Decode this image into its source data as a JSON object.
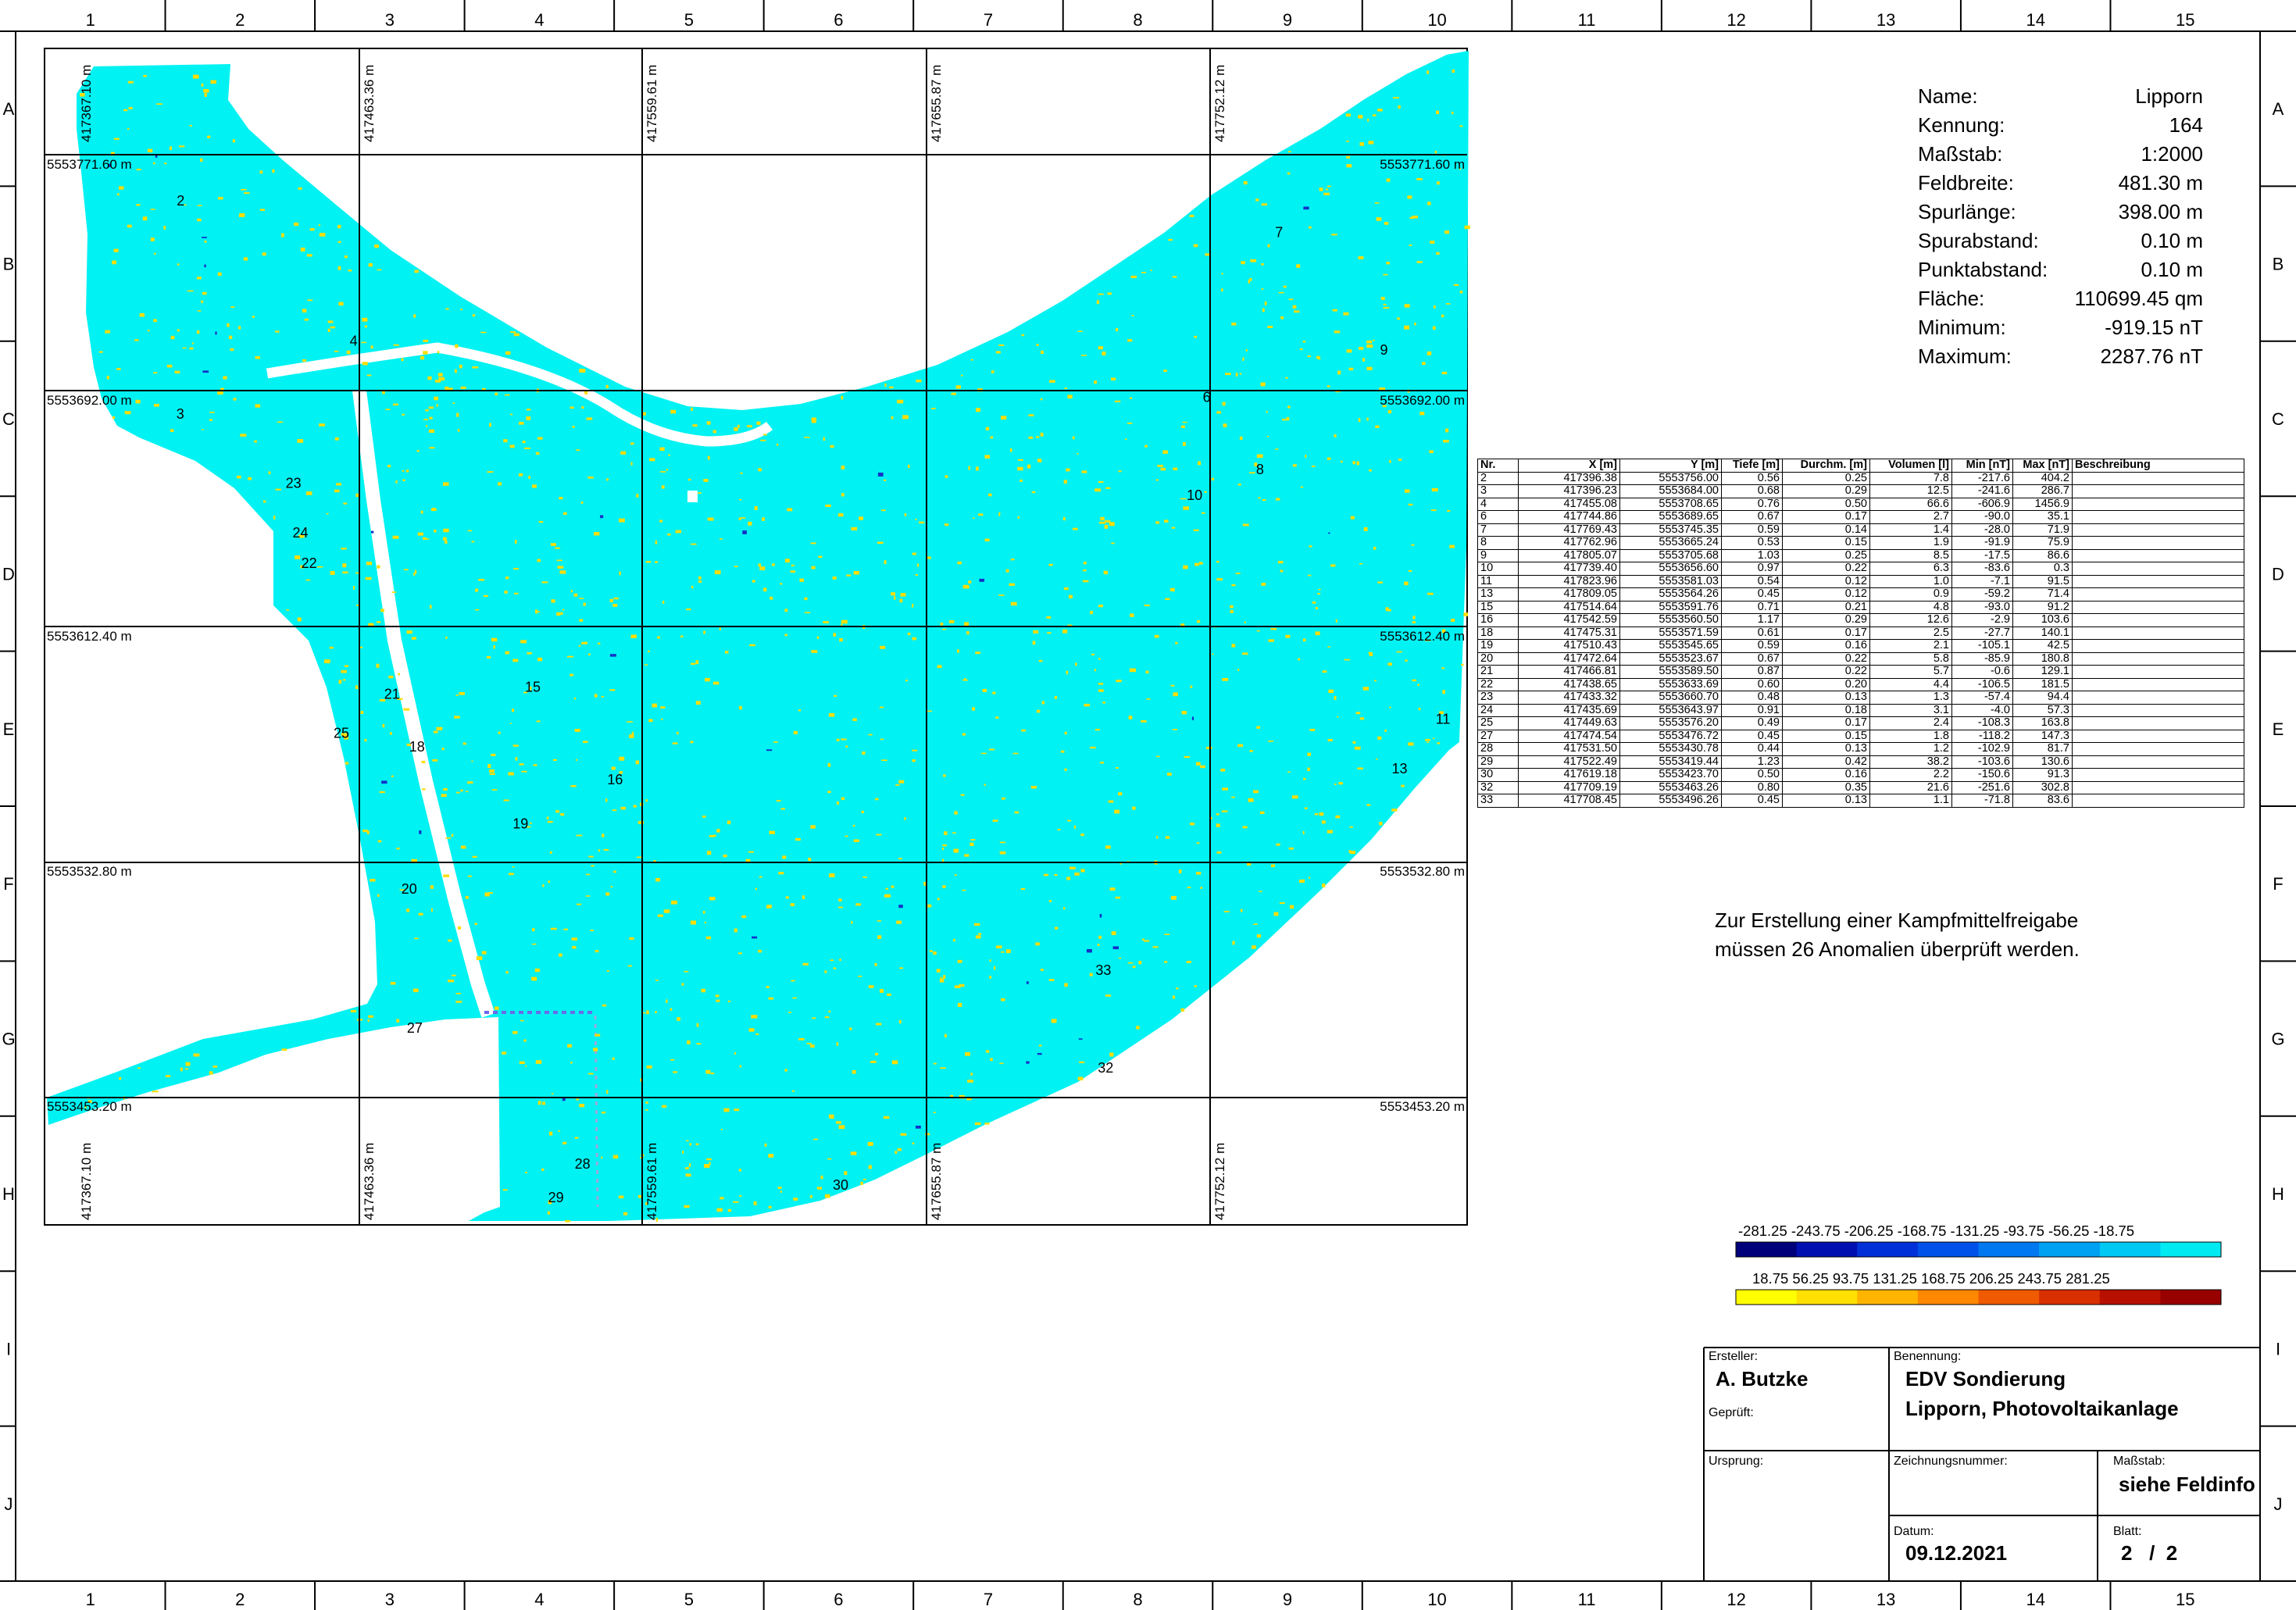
{
  "frame": {
    "columns": [
      "1",
      "2",
      "3",
      "4",
      "5",
      "6",
      "7",
      "8",
      "9",
      "10",
      "11",
      "12",
      "13",
      "14",
      "15"
    ],
    "rows": [
      "A",
      "B",
      "C",
      "D",
      "E",
      "F",
      "G",
      "H",
      "I",
      "J"
    ]
  },
  "map": {
    "colors": {
      "field": "#00f2f2",
      "positive": "#ffdd00",
      "negative": "#1430c8",
      "grid": "#000000"
    },
    "easting_labels": [
      "417367.10 m",
      "417463.36 m",
      "417559.61 m",
      "417655.87 m",
      "417752.12 m"
    ],
    "northing_labels": [
      "5553771.60 m",
      "5553692.00 m",
      "5553612.40 m",
      "5553532.80 m",
      "5553453.20 m"
    ],
    "anomaly_labels": [
      {
        "nr": "2",
        "x": 417396.38,
        "y": 5553756.0
      },
      {
        "nr": "3",
        "x": 417396.23,
        "y": 5553684.0
      },
      {
        "nr": "4",
        "x": 417455.08,
        "y": 5553708.65
      },
      {
        "nr": "6",
        "x": 417744.86,
        "y": 5553689.65
      },
      {
        "nr": "7",
        "x": 417769.43,
        "y": 5553745.35
      },
      {
        "nr": "8",
        "x": 417762.96,
        "y": 5553665.24
      },
      {
        "nr": "9",
        "x": 417805.07,
        "y": 5553705.68
      },
      {
        "nr": "10",
        "x": 417739.4,
        "y": 5553656.6
      },
      {
        "nr": "11",
        "x": 417823.96,
        "y": 5553581.03
      },
      {
        "nr": "13",
        "x": 417809.05,
        "y": 5553564.26
      },
      {
        "nr": "15",
        "x": 417514.64,
        "y": 5553591.76
      },
      {
        "nr": "16",
        "x": 417542.59,
        "y": 5553560.5
      },
      {
        "nr": "18",
        "x": 417475.31,
        "y": 5553571.59
      },
      {
        "nr": "19",
        "x": 417510.43,
        "y": 5553545.65
      },
      {
        "nr": "20",
        "x": 417472.64,
        "y": 5553523.67
      },
      {
        "nr": "21",
        "x": 417466.81,
        "y": 5553589.5
      },
      {
        "nr": "22",
        "x": 417438.65,
        "y": 5553633.69
      },
      {
        "nr": "23",
        "x": 417433.32,
        "y": 5553660.7
      },
      {
        "nr": "24",
        "x": 417435.69,
        "y": 5553643.97
      },
      {
        "nr": "25",
        "x": 417449.63,
        "y": 5553576.2
      },
      {
        "nr": "27",
        "x": 417474.54,
        "y": 5553476.72
      },
      {
        "nr": "28",
        "x": 417531.5,
        "y": 5553430.78
      },
      {
        "nr": "29",
        "x": 417522.49,
        "y": 5553419.44
      },
      {
        "nr": "30",
        "x": 417619.18,
        "y": 5553423.7
      },
      {
        "nr": "32",
        "x": 417709.19,
        "y": 5553463.26
      },
      {
        "nr": "33",
        "x": 417708.45,
        "y": 5553496.26
      }
    ]
  },
  "fieldinfo": [
    {
      "label": "Name:",
      "value": "Lipporn"
    },
    {
      "label": "Kennung:",
      "value": "164"
    },
    {
      "label": "Maßstab:",
      "value": "1:2000"
    },
    {
      "label": "Feldbreite:",
      "value": "481.30 m"
    },
    {
      "label": "Spurlänge:",
      "value": "398.00 m"
    },
    {
      "label": "Spurabstand:",
      "value": "0.10 m"
    },
    {
      "label": "Punktabstand:",
      "value": "0.10 m"
    },
    {
      "label": "Fläche:",
      "value": "110699.45 qm"
    },
    {
      "label": "Minimum:",
      "value": "-919.15 nT"
    },
    {
      "label": "Maximum:",
      "value": "2287.76 nT"
    }
  ],
  "table": {
    "headers": [
      "Nr.",
      "X [m]",
      "Y [m]",
      "Tiefe [m]",
      "Durchm. [m]",
      "Volumen [l]",
      "Min [nT]",
      "Max [nT]",
      "Beschreibung"
    ],
    "rows": [
      [
        "2",
        "417396.38",
        "5553756.00",
        "0.56",
        "0.25",
        "7.8",
        "-217.6",
        "404.2",
        ""
      ],
      [
        "3",
        "417396.23",
        "5553684.00",
        "0.68",
        "0.29",
        "12.5",
        "-241.6",
        "286.7",
        ""
      ],
      [
        "4",
        "417455.08",
        "5553708.65",
        "0.76",
        "0.50",
        "66.6",
        "-606.9",
        "1456.9",
        ""
      ],
      [
        "6",
        "417744.86",
        "5553689.65",
        "0.67",
        "0.17",
        "2.7",
        "-90.0",
        "35.1",
        ""
      ],
      [
        "7",
        "417769.43",
        "5553745.35",
        "0.59",
        "0.14",
        "1.4",
        "-28.0",
        "71.9",
        ""
      ],
      [
        "8",
        "417762.96",
        "5553665.24",
        "0.53",
        "0.15",
        "1.9",
        "-91.9",
        "75.9",
        ""
      ],
      [
        "9",
        "417805.07",
        "5553705.68",
        "1.03",
        "0.25",
        "8.5",
        "-17.5",
        "86.6",
        ""
      ],
      [
        "10",
        "417739.40",
        "5553656.60",
        "0.97",
        "0.22",
        "6.3",
        "-83.6",
        "0.3",
        ""
      ],
      [
        "11",
        "417823.96",
        "5553581.03",
        "0.54",
        "0.12",
        "1.0",
        "-7.1",
        "91.5",
        ""
      ],
      [
        "13",
        "417809.05",
        "5553564.26",
        "0.45",
        "0.12",
        "0.9",
        "-59.2",
        "71.4",
        ""
      ],
      [
        "15",
        "417514.64",
        "5553591.76",
        "0.71",
        "0.21",
        "4.8",
        "-93.0",
        "91.2",
        ""
      ],
      [
        "16",
        "417542.59",
        "5553560.50",
        "1.17",
        "0.29",
        "12.6",
        "-2.9",
        "103.6",
        ""
      ],
      [
        "18",
        "417475.31",
        "5553571.59",
        "0.61",
        "0.17",
        "2.5",
        "-27.7",
        "140.1",
        ""
      ],
      [
        "19",
        "417510.43",
        "5553545.65",
        "0.59",
        "0.16",
        "2.1",
        "-105.1",
        "42.5",
        ""
      ],
      [
        "20",
        "417472.64",
        "5553523.67",
        "0.67",
        "0.22",
        "5.8",
        "-85.9",
        "180.8",
        ""
      ],
      [
        "21",
        "417466.81",
        "5553589.50",
        "0.87",
        "0.22",
        "5.7",
        "-0.6",
        "129.1",
        ""
      ],
      [
        "22",
        "417438.65",
        "5553633.69",
        "0.60",
        "0.20",
        "4.4",
        "-106.5",
        "181.5",
        ""
      ],
      [
        "23",
        "417433.32",
        "5553660.70",
        "0.48",
        "0.13",
        "1.3",
        "-57.4",
        "94.4",
        ""
      ],
      [
        "24",
        "417435.69",
        "5553643.97",
        "0.91",
        "0.18",
        "3.1",
        "-4.0",
        "57.3",
        ""
      ],
      [
        "25",
        "417449.63",
        "5553576.20",
        "0.49",
        "0.17",
        "2.4",
        "-108.3",
        "163.8",
        ""
      ],
      [
        "27",
        "417474.54",
        "5553476.72",
        "0.45",
        "0.15",
        "1.8",
        "-118.2",
        "147.3",
        ""
      ],
      [
        "28",
        "417531.50",
        "5553430.78",
        "0.44",
        "0.13",
        "1.2",
        "-102.9",
        "81.7",
        ""
      ],
      [
        "29",
        "417522.49",
        "5553419.44",
        "1.23",
        "0.42",
        "38.2",
        "-103.6",
        "130.6",
        ""
      ],
      [
        "30",
        "417619.18",
        "5553423.70",
        "0.50",
        "0.16",
        "2.2",
        "-150.6",
        "91.3",
        ""
      ],
      [
        "32",
        "417709.19",
        "5553463.26",
        "0.80",
        "0.35",
        "21.6",
        "-251.6",
        "302.8",
        ""
      ],
      [
        "33",
        "417708.45",
        "5553496.26",
        "0.45",
        "0.13",
        "1.1",
        "-71.8",
        "83.6",
        ""
      ]
    ]
  },
  "note": {
    "line1": "Zur Erstellung einer Kampfmittelfreigabe",
    "line2": "müssen 26 Anomalien überprüft werden."
  },
  "legend": {
    "negative_labels": "-281.25 -243.75 -206.25 -168.75 -131.25 -93.75 -56.25 -18.75",
    "positive_labels": "18.75 56.25 93.75 131.25 168.75 206.25 243.75 281.25",
    "negative_colors": [
      "#00007a",
      "#0010b0",
      "#0030d8",
      "#0050ea",
      "#0078f0",
      "#00a0f2",
      "#00c8f4",
      "#00eaf2"
    ],
    "positive_colors": [
      "#ffff00",
      "#ffe000",
      "#ffb400",
      "#ff8800",
      "#f05a00",
      "#d83000",
      "#b81000",
      "#980000"
    ]
  },
  "titleblock": {
    "ersteller_label": "Ersteller:",
    "ersteller": "A. Butzke",
    "geprueft_label": "Geprüft:",
    "ursprung_label": "Ursprung:",
    "benennung_label": "Benennung:",
    "benennung_1": "EDV Sondierung",
    "benennung_2": "Lipporn, Photovoltaikanlage",
    "zeichnungsnummer_label": "Zeichnungsnummer:",
    "massstab_label": "Maßstab:",
    "massstab": "siehe Feldinfo",
    "datum_label": "Datum:",
    "datum": "09.12.2021",
    "blatt_label": "Blatt:",
    "blatt": "2   /  2"
  }
}
